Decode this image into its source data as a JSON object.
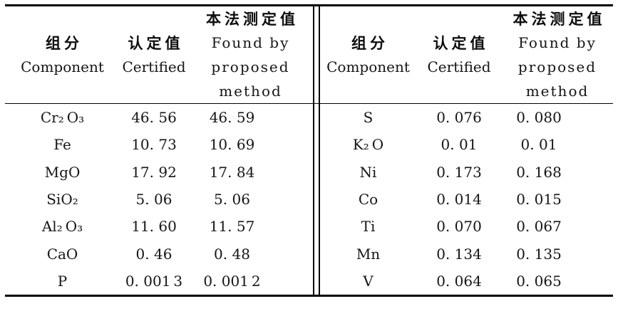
{
  "table": {
    "header": {
      "zh_component": "组分",
      "en_component": "Component",
      "zh_certified": "认定值",
      "en_certified": "Certified",
      "zh_found": "本法测定值",
      "en_found_1": "Found by",
      "en_found_2": "proposed",
      "en_found_3": "method"
    },
    "left_rows": [
      {
        "component": "Cr₂ O₃",
        "certified": "46. 56",
        "found": "46. 59"
      },
      {
        "component": "Fe",
        "certified": "10. 73",
        "found": "10. 69"
      },
      {
        "component": "MgO",
        "certified": "17. 92",
        "found": "17. 84"
      },
      {
        "component": "SiO₂",
        "certified": "5. 06",
        "found": "5. 06"
      },
      {
        "component": "Al₂ O₃",
        "certified": "11. 60",
        "found": "11. 57"
      },
      {
        "component": "CaO",
        "certified": "0. 46",
        "found": "0. 48"
      },
      {
        "component": "P",
        "certified": "0. 001 3",
        "found": "0. 001 2"
      }
    ],
    "right_rows": [
      {
        "component": "S",
        "certified": "0. 076",
        "found": "0. 080"
      },
      {
        "component": "K₂ O",
        "certified": "0. 01",
        "found": "0. 01"
      },
      {
        "component": "Ni",
        "certified": "0. 173",
        "found": "0. 168"
      },
      {
        "component": "Co",
        "certified": "0. 014",
        "found": "0. 015"
      },
      {
        "component": "Ti",
        "certified": "0. 070",
        "found": "0. 067"
      },
      {
        "component": "Mn",
        "certified": "0. 134",
        "found": "0. 135"
      },
      {
        "component": "V",
        "certified": "0. 064",
        "found": "0. 065"
      }
    ],
    "colors": {
      "text": "#151515",
      "rule": "#000000",
      "background": "#ffffff"
    }
  },
  "chart_data": {
    "type": "table",
    "title": "",
    "columns": [
      "组分 Component",
      "认定值 Certified",
      "本法测定值 Found by proposed method"
    ],
    "rows": [
      [
        "Cr2O3",
        "46.56",
        "46.59"
      ],
      [
        "Fe",
        "10.73",
        "10.69"
      ],
      [
        "MgO",
        "17.92",
        "17.84"
      ],
      [
        "SiO2",
        "5.06",
        "5.06"
      ],
      [
        "Al2O3",
        "11.60",
        "11.57"
      ],
      [
        "CaO",
        "0.46",
        "0.48"
      ],
      [
        "P",
        "0.0013",
        "0.0012"
      ],
      [
        "S",
        "0.076",
        "0.080"
      ],
      [
        "K2O",
        "0.01",
        "0.01"
      ],
      [
        "Ni",
        "0.173",
        "0.168"
      ],
      [
        "Co",
        "0.014",
        "0.015"
      ],
      [
        "Ti",
        "0.070",
        "0.067"
      ],
      [
        "Mn",
        "0.134",
        "0.135"
      ],
      [
        "V",
        "0.064",
        "0.065"
      ]
    ]
  }
}
